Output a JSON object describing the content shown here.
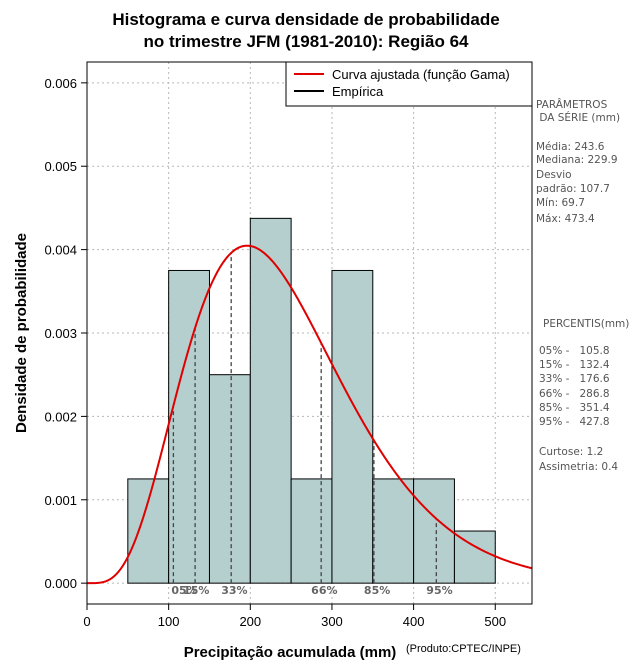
{
  "chart_data": {
    "type": "bar",
    "title_lines": [
      "Histograma e curva densidade de probabilidade",
      "no trimestre JFM (1981-2010): Região 64"
    ],
    "xlabel": "Precipitação acumulada (mm)",
    "ylabel": "Densidade de probabilidade",
    "credit": "(Produto:CPTEC/INPE)",
    "xlim": [
      0,
      545
    ],
    "ylim": [
      -0.00025,
      0.00625
    ],
    "x_ticks": [
      0,
      100,
      200,
      300,
      400,
      500
    ],
    "y_ticks": [
      0.0,
      0.001,
      0.002,
      0.003,
      0.004,
      0.005,
      0.006
    ],
    "y_tick_labels": [
      "0.000",
      "0.001",
      "0.002",
      "0.003",
      "0.004",
      "0.005",
      "0.006"
    ],
    "grid": true,
    "bins": [
      {
        "start": 50,
        "end": 100,
        "density": 0.00125
      },
      {
        "start": 100,
        "end": 150,
        "density": 0.00375
      },
      {
        "start": 150,
        "end": 200,
        "density": 0.0025
      },
      {
        "start": 200,
        "end": 250,
        "density": 0.004375
      },
      {
        "start": 250,
        "end": 300,
        "density": 0.00125
      },
      {
        "start": 300,
        "end": 350,
        "density": 0.00375
      },
      {
        "start": 350,
        "end": 400,
        "density": 0.00125
      },
      {
        "start": 400,
        "end": 450,
        "density": 0.00125
      },
      {
        "start": 450,
        "end": 500,
        "density": 0.000625
      }
    ],
    "gamma_fit": {
      "mean": 243.6,
      "sd": 107.7
    },
    "legend": {
      "placement": "top-right",
      "entries": [
        {
          "label": "Curva ajustada (função Gama)",
          "color": "#e00000"
        },
        {
          "label": "Empírica",
          "color": "#000000"
        }
      ]
    },
    "percentile_markers": [
      {
        "label": "05%",
        "value": 105.8
      },
      {
        "label": "15%",
        "value": 132.4
      },
      {
        "label": "33%",
        "value": 176.6
      },
      {
        "label": "66%",
        "value": 286.8
      },
      {
        "label": "85%",
        "value": 351.4
      },
      {
        "label": "95%",
        "value": 427.8
      }
    ],
    "colors": {
      "bar_fill": "#b5cece",
      "curve": "#e00000",
      "grid": "#b8b8b8",
      "marker": "#444444"
    }
  },
  "side_panel": {
    "params_title_1": "PARÂMETROS",
    "params_title_2": " DA SÉRIE (mm)",
    "media": "Média:  243.6",
    "mediana": "Mediana:  229.9",
    "desvio_1": "Desvio",
    "desvio_2": "padrão:  107.7",
    "min": "Mín:  69.7",
    "max": "Máx:  473.4",
    "pct_title": "PERCENTIS(mm)",
    "p05": "05% -   105.8",
    "p15": "15% -   132.4",
    "p33": "33% -   176.6",
    "p66": "66% -   286.8",
    "p85": "85% -   351.4",
    "p95": "95% -   427.8",
    "curtose": "Curtose:  1.2",
    "assimetria": "Assimetria:  0.4"
  }
}
